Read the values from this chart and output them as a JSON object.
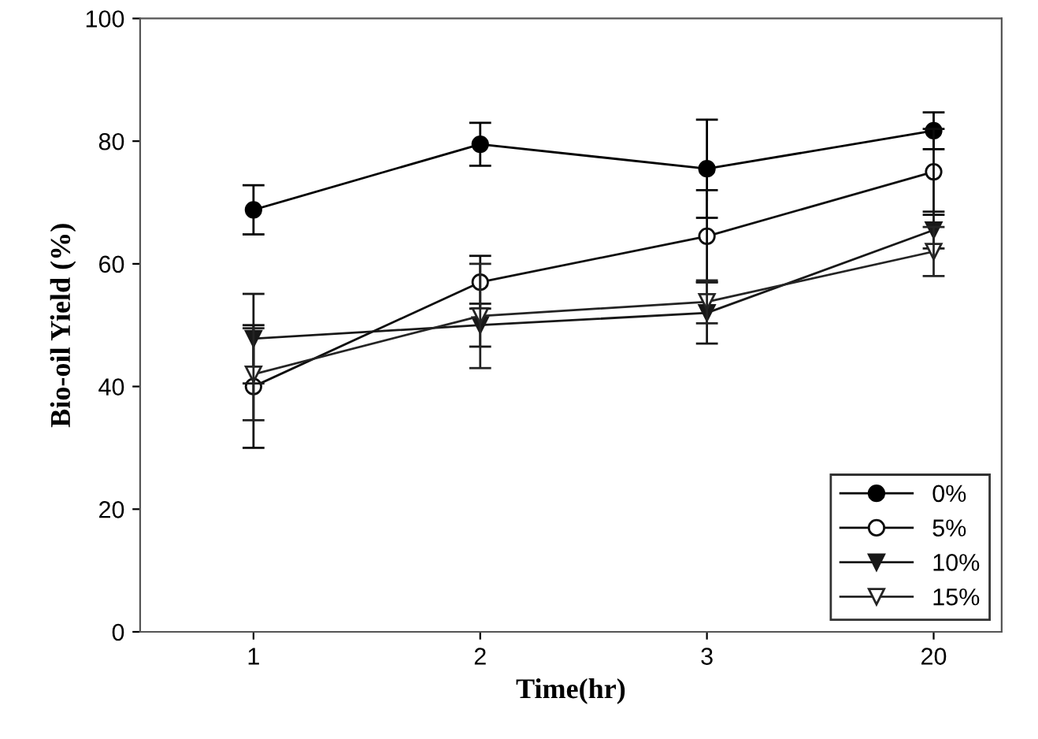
{
  "chart_data": {
    "type": "line",
    "xlabel": "Time(hr)",
    "ylabel": "Bio-oil Yield (%)",
    "categories": [
      "1",
      "2",
      "3",
      "20"
    ],
    "series": [
      {
        "name": "0%",
        "color": "#000000",
        "marker": "circle",
        "values": [
          68.8,
          79.5,
          75.5,
          81.7
        ],
        "errors": [
          4,
          3.5,
          8,
          3
        ]
      },
      {
        "name": "5%",
        "color": "#0c0c0c",
        "marker": "circle",
        "values": [
          40,
          57,
          64.5,
          75
        ],
        "errors": [
          10,
          4.3,
          7.5,
          7
        ]
      },
      {
        "name": "10%",
        "color": "#181818",
        "marker": "triangle",
        "values": [
          47.8,
          50,
          52,
          65.5
        ],
        "errors": [
          7.3,
          3.5,
          5,
          3
        ]
      },
      {
        "name": "15%",
        "color": "#242424",
        "marker": "triangle",
        "values": [
          42,
          51.5,
          53.8,
          62
        ],
        "errors": [
          7.5,
          8.5,
          3.5,
          4
        ]
      }
    ],
    "ylim": [
      0,
      100
    ],
    "yticks": [
      0,
      20,
      40,
      60,
      80,
      100
    ],
    "grid": false,
    "legend": "bottom right"
  }
}
